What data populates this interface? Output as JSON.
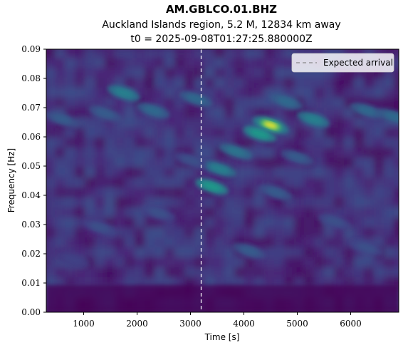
{
  "chart_data": {
    "type": "heatmap",
    "title": "AM.GBLCO.01.BHZ",
    "subtitle": "Auckland Islands region, 5.2 M, 12834 km away",
    "subtitle2": "t0 = 2025-09-08T01:27:25.880000Z",
    "xlabel": "Time [s]",
    "ylabel": "Frequency [Hz]",
    "xlim": [
      300,
      6900
    ],
    "ylim": [
      0.0,
      0.09
    ],
    "x_ticks": [
      1000,
      2000,
      3000,
      4000,
      5000,
      6000
    ],
    "y_ticks": [
      0.0,
      0.01,
      0.02,
      0.03,
      0.04,
      0.05,
      0.06,
      0.07,
      0.08,
      0.09
    ],
    "x_tick_labels": [
      "1000",
      "2000",
      "3000",
      "4000",
      "5000",
      "6000"
    ],
    "y_tick_labels": [
      "0.00",
      "0.01",
      "0.02",
      "0.03",
      "0.04",
      "0.05",
      "0.06",
      "0.07",
      "0.08",
      "0.09"
    ],
    "colormap": "viridis",
    "expected_arrival": 3200,
    "legend": {
      "label": "Expected arrival",
      "placement": "top-right"
    },
    "hotspots": [
      {
        "t": 4500,
        "f": 0.064,
        "intensity": 1.0
      },
      {
        "t": 3400,
        "f": 0.043,
        "intensity": 0.55
      },
      {
        "t": 3550,
        "f": 0.049,
        "intensity": 0.45
      },
      {
        "t": 4300,
        "f": 0.061,
        "intensity": 0.55
      },
      {
        "t": 3850,
        "f": 0.055,
        "intensity": 0.4
      },
      {
        "t": 1750,
        "f": 0.075,
        "intensity": 0.45
      },
      {
        "t": 1400,
        "f": 0.068,
        "intensity": 0.3
      },
      {
        "t": 2300,
        "f": 0.069,
        "intensity": 0.35
      },
      {
        "t": 5300,
        "f": 0.066,
        "intensity": 0.45
      },
      {
        "t": 4800,
        "f": 0.072,
        "intensity": 0.35
      },
      {
        "t": 6300,
        "f": 0.069,
        "intensity": 0.35
      },
      {
        "t": 6800,
        "f": 0.067,
        "intensity": 0.35
      },
      {
        "t": 3100,
        "f": 0.073,
        "intensity": 0.35
      },
      {
        "t": 600,
        "f": 0.066,
        "intensity": 0.3
      },
      {
        "t": 3000,
        "f": 0.052,
        "intensity": 0.25
      },
      {
        "t": 4100,
        "f": 0.021,
        "intensity": 0.3
      },
      {
        "t": 2400,
        "f": 0.034,
        "intensity": 0.25
      },
      {
        "t": 1300,
        "f": 0.029,
        "intensity": 0.25
      },
      {
        "t": 5700,
        "f": 0.031,
        "intensity": 0.25
      },
      {
        "t": 4600,
        "f": 0.041,
        "intensity": 0.3
      },
      {
        "t": 6300,
        "f": 0.022,
        "intensity": 0.25
      },
      {
        "t": 800,
        "f": 0.018,
        "intensity": 0.2
      },
      {
        "t": 5000,
        "f": 0.053,
        "intensity": 0.3
      }
    ]
  }
}
